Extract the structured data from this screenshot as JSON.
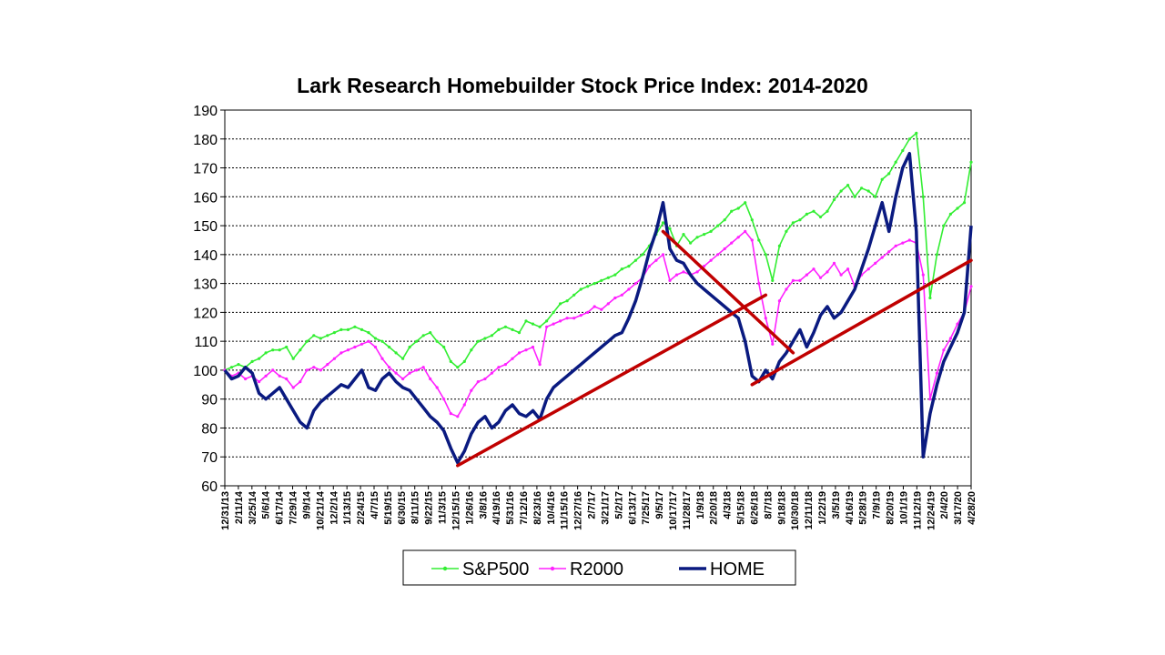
{
  "chart_data": {
    "type": "line",
    "title": "Lark Research Homebuilder Stock Price Index: 2014-2020",
    "xlabel": "",
    "ylabel": "",
    "ylim": [
      60,
      190
    ],
    "y_ticks": [
      60,
      70,
      80,
      90,
      100,
      110,
      120,
      130,
      140,
      150,
      160,
      170,
      180,
      190
    ],
    "grid": true,
    "x_tick_labels": [
      "12/31/13",
      "2/11/14",
      "3/25/14",
      "5/6/14",
      "6/17/14",
      "7/29/14",
      "9/9/14",
      "10/21/14",
      "12/2/14",
      "1/13/15",
      "2/24/15",
      "4/7/15",
      "5/19/15",
      "6/30/15",
      "8/11/15",
      "9/22/15",
      "11/3/15",
      "12/15/15",
      "1/26/16",
      "3/8/16",
      "4/19/16",
      "5/31/16",
      "7/12/16",
      "8/23/16",
      "10/4/16",
      "11/15/16",
      "12/27/16",
      "2/7/17",
      "3/21/17",
      "5/2/17",
      "6/13/17",
      "7/25/17",
      "9/5/17",
      "10/17/17",
      "11/28/17",
      "1/9/18",
      "2/20/18",
      "4/3/18",
      "5/15/18",
      "6/26/18",
      "8/7/18",
      "9/18/18",
      "10/30/18",
      "12/11/18",
      "1/22/19",
      "3/5/19",
      "4/16/19",
      "5/28/19",
      "7/9/19",
      "8/20/19",
      "10/1/19",
      "11/12/19",
      "12/24/19",
      "2/4/20",
      "3/17/20",
      "4/28/20"
    ],
    "legend_position": "bottom",
    "series": [
      {
        "name": "S&P500",
        "color": "#33ee33",
        "values": [
          100,
          101,
          102,
          101,
          103,
          104,
          106,
          107,
          107,
          108,
          104,
          107,
          110,
          112,
          111,
          112,
          113,
          114,
          114,
          115,
          114,
          113,
          111,
          110,
          108,
          106,
          104,
          108,
          110,
          112,
          113,
          110,
          108,
          103,
          101,
          103,
          107,
          110,
          111,
          112,
          114,
          115,
          114,
          113,
          117,
          116,
          115,
          117,
          120,
          123,
          124,
          126,
          128,
          129,
          130,
          131,
          132,
          133,
          135,
          136,
          138,
          140,
          143,
          147,
          151,
          149,
          143,
          147,
          144,
          146,
          147,
          148,
          150,
          152,
          155,
          156,
          158,
          152,
          145,
          140,
          131,
          143,
          148,
          151,
          152,
          154,
          155,
          153,
          155,
          159,
          162,
          164,
          160,
          163,
          162,
          160,
          166,
          168,
          172,
          176,
          180,
          182,
          160,
          125,
          140,
          150,
          154,
          156,
          158,
          172
        ]
      },
      {
        "name": "R2000",
        "color": "#ff22ff",
        "values": [
          100,
          98,
          99,
          97,
          98,
          96,
          98,
          100,
          98,
          97,
          94,
          96,
          100,
          101,
          100,
          102,
          104,
          106,
          107,
          108,
          109,
          110,
          108,
          104,
          101,
          99,
          97,
          99,
          100,
          101,
          97,
          94,
          90,
          85,
          84,
          88,
          93,
          96,
          97,
          99,
          101,
          102,
          104,
          106,
          107,
          108,
          102,
          115,
          116,
          117,
          118,
          118,
          119,
          120,
          122,
          121,
          123,
          125,
          126,
          128,
          130,
          132,
          136,
          138,
          140,
          131,
          133,
          134,
          133,
          134,
          136,
          138,
          140,
          142,
          144,
          146,
          148,
          145,
          130,
          118,
          109,
          124,
          128,
          131,
          131,
          133,
          135,
          132,
          134,
          137,
          133,
          135,
          129,
          133,
          135,
          137,
          139,
          141,
          143,
          144,
          145,
          144,
          133,
          90,
          99,
          107,
          111,
          116,
          120,
          129
        ]
      },
      {
        "name": "HOME",
        "color": "#0a1a80",
        "values": [
          100,
          97,
          98,
          101,
          99,
          92,
          90,
          92,
          94,
          90,
          86,
          82,
          80,
          86,
          89,
          91,
          93,
          95,
          94,
          97,
          100,
          94,
          93,
          97,
          99,
          96,
          94,
          93,
          90,
          87,
          84,
          82,
          79,
          73,
          68,
          72,
          78,
          82,
          84,
          80,
          82,
          86,
          88,
          85,
          84,
          86,
          83,
          90,
          94,
          96,
          98,
          100,
          102,
          104,
          106,
          108,
          110,
          112,
          113,
          118,
          124,
          132,
          141,
          148,
          158,
          142,
          138,
          137,
          133,
          130,
          128,
          126,
          124,
          122,
          120,
          118,
          110,
          98,
          96,
          100,
          97,
          103,
          106,
          110,
          114,
          108,
          113,
          119,
          122,
          118,
          120,
          124,
          128,
          135,
          142,
          150,
          158,
          148,
          160,
          170,
          175,
          148,
          70,
          85,
          95,
          103,
          108,
          113,
          120,
          150
        ]
      }
    ],
    "trendlines": [
      {
        "x": [
          34,
          79
        ],
        "y": [
          67,
          126
        ],
        "color": "#c00000"
      },
      {
        "x": [
          64,
          83
        ],
        "y": [
          148,
          106
        ],
        "color": "#c00000"
      },
      {
        "x": [
          77,
          109
        ],
        "y": [
          95,
          138
        ],
        "color": "#c00000"
      }
    ]
  }
}
